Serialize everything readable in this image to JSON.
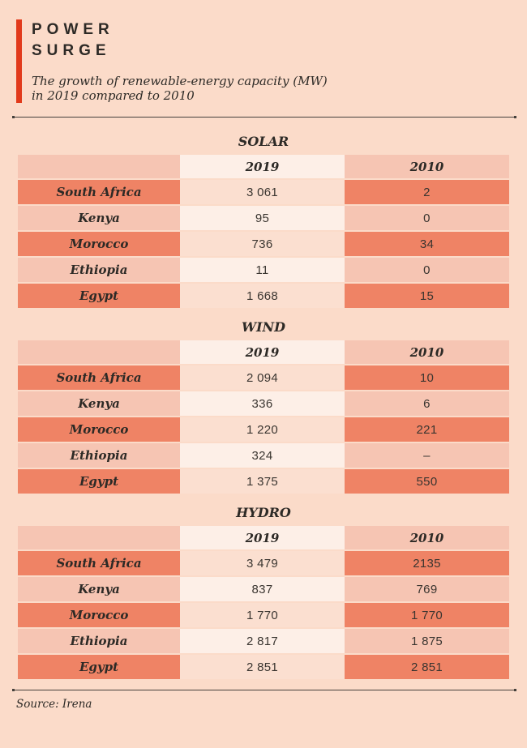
{
  "header": {
    "title_line1": "POWER",
    "title_line2": "SURGE",
    "subtitle_line1": "The growth of renewable-energy capacity (MW)",
    "subtitle_line2": "in 2019 compared to 2010"
  },
  "tables": [
    {
      "title": "SOLAR",
      "col_2019": "2019",
      "col_2010": "2010",
      "rows": [
        {
          "country": "South Africa",
          "v2019": "3 061",
          "v2010": "2"
        },
        {
          "country": "Kenya",
          "v2019": "95",
          "v2010": "0"
        },
        {
          "country": "Morocco",
          "v2019": "736",
          "v2010": "34"
        },
        {
          "country": "Ethiopia",
          "v2019": "11",
          "v2010": "0"
        },
        {
          "country": "Egypt",
          "v2019": "1 668",
          "v2010": "15"
        }
      ]
    },
    {
      "title": "WIND",
      "col_2019": "2019",
      "col_2010": "2010",
      "rows": [
        {
          "country": "South Africa",
          "v2019": "2 094",
          "v2010": "10"
        },
        {
          "country": "Kenya",
          "v2019": "336",
          "v2010": "6"
        },
        {
          "country": "Morocco",
          "v2019": "1 220",
          "v2010": "221"
        },
        {
          "country": "Ethiopia",
          "v2019": "324",
          "v2010": "–"
        },
        {
          "country": "Egypt",
          "v2019": "1 375",
          "v2010": "550"
        }
      ]
    },
    {
      "title": "HYDRO",
      "col_2019": "2019",
      "col_2010": "2010",
      "rows": [
        {
          "country": "South Africa",
          "v2019": "3 479",
          "v2010": "2135"
        },
        {
          "country": "Kenya",
          "v2019": "837",
          "v2010": "769"
        },
        {
          "country": "Morocco",
          "v2019": "1 770",
          "v2010": "1 770"
        },
        {
          "country": "Ethiopia",
          "v2019": "2 817",
          "v2010": "1 875"
        },
        {
          "country": "Egypt",
          "v2019": "2 851",
          "v2010": "2 851"
        }
      ]
    }
  ],
  "footer": {
    "source": "Source: Irena"
  },
  "colors": {
    "background": "#fbdbc9",
    "accent_red": "#e23a1b",
    "row_dark_salmon": "#ef8365",
    "row_light_pink": "#f6c5b3",
    "cell_cream": "#fdefe7",
    "cell_peach": "#fbdfd0",
    "text_dark": "#2d2a26",
    "rule": "#45403b"
  },
  "chart_data": [
    {
      "type": "table",
      "title": "SOLAR",
      "columns": [
        "2019",
        "2010"
      ],
      "categories": [
        "South Africa",
        "Kenya",
        "Morocco",
        "Ethiopia",
        "Egypt"
      ],
      "series": [
        {
          "name": "2019",
          "values": [
            3061,
            95,
            736,
            11,
            1668
          ]
        },
        {
          "name": "2010",
          "values": [
            2,
            0,
            34,
            0,
            15
          ]
        }
      ]
    },
    {
      "type": "table",
      "title": "WIND",
      "columns": [
        "2019",
        "2010"
      ],
      "categories": [
        "South Africa",
        "Kenya",
        "Morocco",
        "Ethiopia",
        "Egypt"
      ],
      "series": [
        {
          "name": "2019",
          "values": [
            2094,
            336,
            1220,
            324,
            1375
          ]
        },
        {
          "name": "2010",
          "values": [
            10,
            6,
            221,
            null,
            550
          ]
        }
      ]
    },
    {
      "type": "table",
      "title": "HYDRO",
      "columns": [
        "2019",
        "2010"
      ],
      "categories": [
        "South Africa",
        "Kenya",
        "Morocco",
        "Ethiopia",
        "Egypt"
      ],
      "series": [
        {
          "name": "2019",
          "values": [
            3479,
            837,
            1770,
            2817,
            2851
          ]
        },
        {
          "name": "2010",
          "values": [
            2135,
            769,
            1770,
            1875,
            2851
          ]
        }
      ]
    }
  ]
}
